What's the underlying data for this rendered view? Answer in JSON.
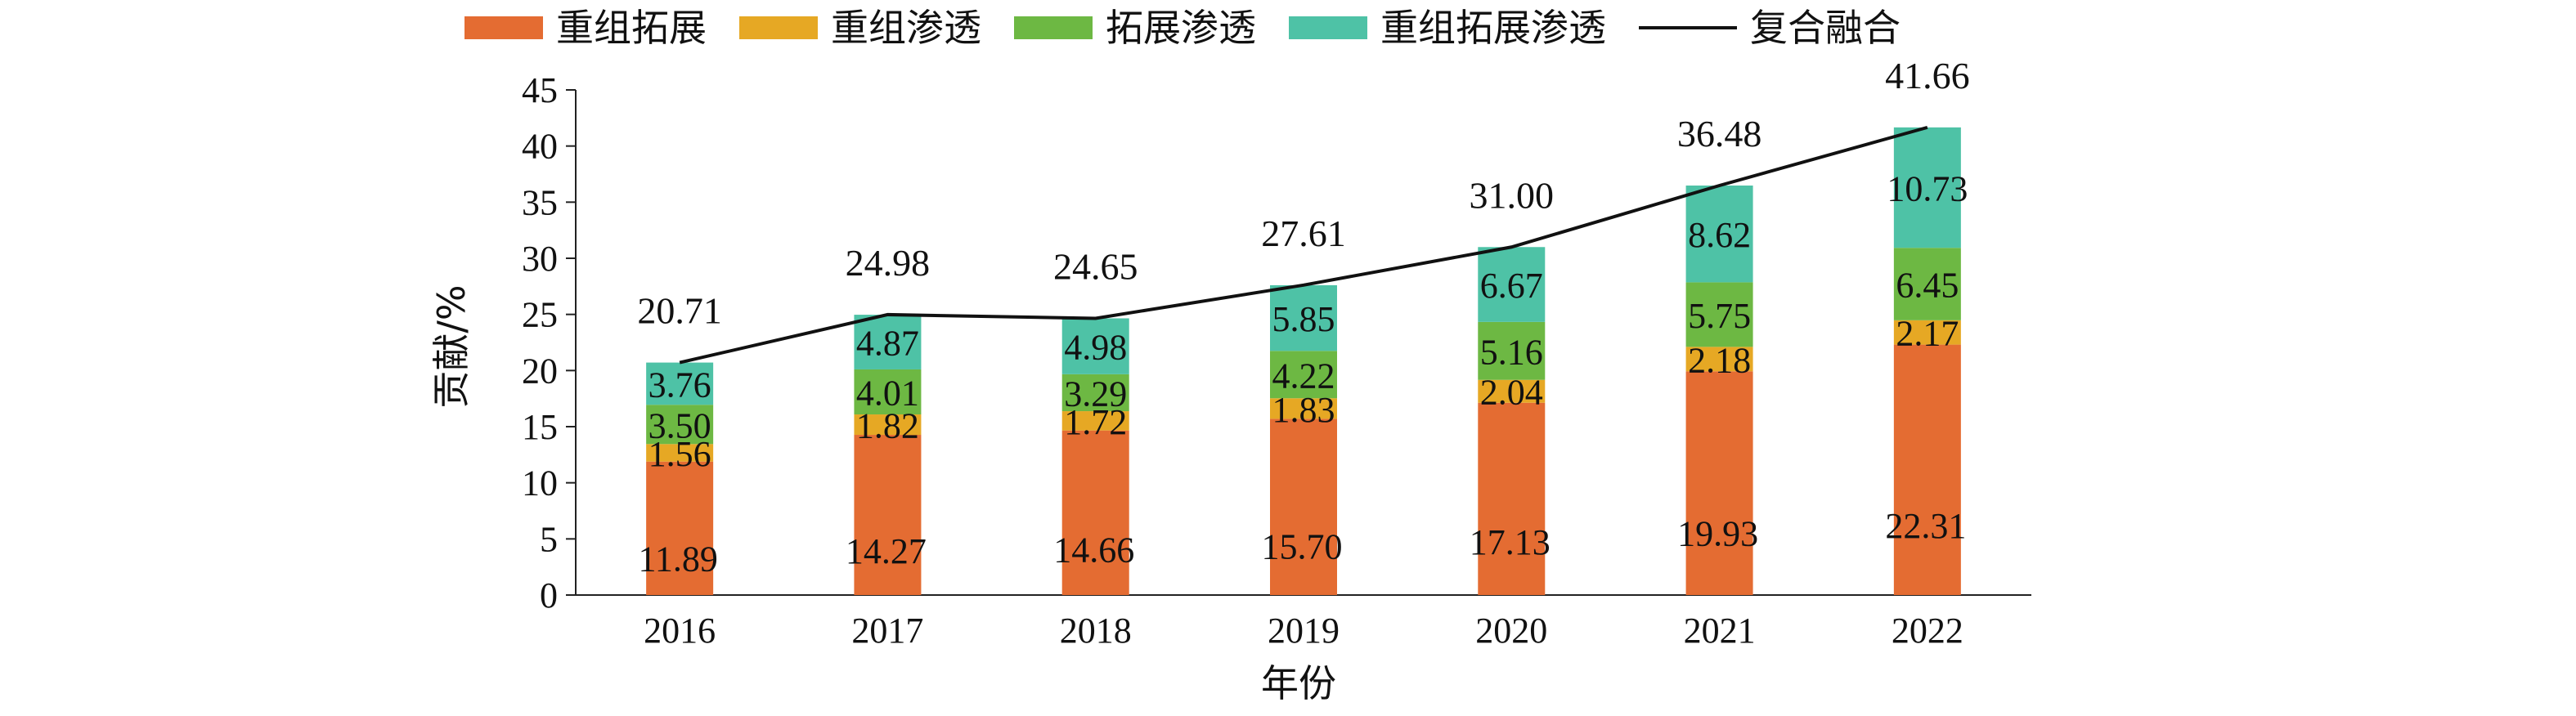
{
  "chart_data": {
    "type": "bar",
    "stacked": true,
    "title": "",
    "xlabel": "年份",
    "ylabel": "贡献/%",
    "ylim": [
      0,
      45
    ],
    "yticks": [
      "0",
      "5",
      "10",
      "15",
      "20",
      "25",
      "30",
      "35",
      "40",
      "45"
    ],
    "categories": [
      "2016",
      "2017",
      "2018",
      "2019",
      "2020",
      "2021",
      "2022"
    ],
    "legend_position": "top",
    "series": [
      {
        "name": "重组拓展",
        "color": "#E46C32",
        "values": [
          11.89,
          14.27,
          14.66,
          15.7,
          17.13,
          19.93,
          22.31
        ],
        "labels": [
          "11.89",
          "14.27",
          "14.66",
          "15.70",
          "17.13",
          "19.93",
          "22.31"
        ]
      },
      {
        "name": "重组渗透",
        "color": "#E6A824",
        "values": [
          1.56,
          1.82,
          1.72,
          1.83,
          2.04,
          2.18,
          2.17
        ],
        "labels": [
          "1.56",
          "1.82",
          "1.72",
          "1.83",
          "2.04",
          "2.18",
          "2.17"
        ]
      },
      {
        "name": "拓展渗透",
        "color": "#6DB843",
        "values": [
          3.5,
          4.01,
          3.29,
          4.22,
          5.16,
          5.75,
          6.45
        ],
        "labels": [
          "3.50",
          "4.01",
          "3.29",
          "4.22",
          "5.16",
          "5.75",
          "6.45"
        ]
      },
      {
        "name": "重组拓展渗透",
        "color": "#4EC2A6",
        "values": [
          3.76,
          4.87,
          4.98,
          5.85,
          6.67,
          8.62,
          10.73
        ],
        "labels": [
          "3.76",
          "4.87",
          "4.98",
          "5.85",
          "6.67",
          "8.62",
          "10.73"
        ]
      }
    ],
    "line_series": {
      "name": "复合融合",
      "color": "#111111",
      "values": [
        20.71,
        24.98,
        24.65,
        27.61,
        31.0,
        36.48,
        41.66
      ],
      "labels": [
        "20.71",
        "24.98",
        "24.65",
        "27.61",
        "31.00",
        "36.48",
        "41.66"
      ]
    }
  }
}
